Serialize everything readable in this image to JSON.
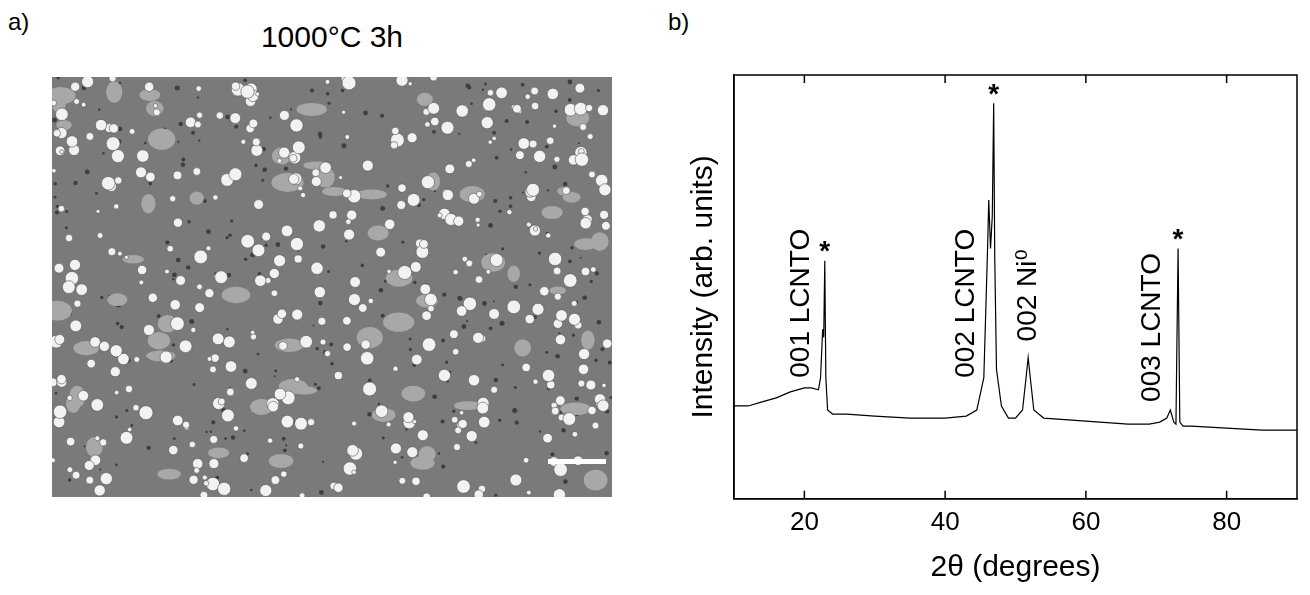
{
  "panel_a": {
    "label": "a)",
    "title": "1000°C 3h"
  },
  "chart_data": {
    "type": "line",
    "panel_label": "b)",
    "x_label": "2θ (degrees)",
    "y_label": "Intensity (arb. units)",
    "x": [
      10,
      12,
      14,
      16,
      18,
      20,
      21,
      22,
      22.3,
      22.6,
      22.75,
      22.9,
      23.05,
      23.3,
      24,
      26,
      30,
      35,
      40,
      43,
      44.5,
      45.5,
      46.0,
      46.2,
      46.45,
      46.7,
      46.9,
      47.05,
      47.3,
      48,
      49,
      50,
      51,
      51.5,
      51.8,
      52.1,
      52.6,
      54,
      58,
      62,
      66,
      69,
      70.5,
      71.5,
      72.0,
      72.5,
      72.8,
      73.1,
      73.35,
      73.8,
      75,
      80,
      85,
      90
    ],
    "values": [
      23,
      23,
      24,
      25,
      26.5,
      27.5,
      27.5,
      27,
      30,
      42,
      40,
      59,
      30,
      22,
      21,
      21,
      20.5,
      20,
      20,
      20.5,
      22,
      30,
      60,
      74,
      62,
      70,
      98,
      60,
      32,
      23,
      20,
      20,
      22,
      30,
      35,
      30,
      22,
      20,
      19.5,
      19,
      18.5,
      18.5,
      19,
      20,
      22,
      19,
      18.5,
      62,
      19,
      18,
      18,
      17.5,
      17,
      17
    ],
    "color": "#000000",
    "xlim": [
      10,
      90
    ],
    "xticks": [
      20,
      40,
      60,
      80
    ],
    "ylim": [
      0,
      105
    ],
    "tick_labels": "x",
    "grid": false,
    "annotations": [
      {
        "text": "001 LCNTO",
        "x": 19.5,
        "y": 30
      },
      {
        "text": "*",
        "x": 22.9,
        "y": 60.5
      },
      {
        "text": "002 LCNTO",
        "x": 43,
        "y": 30
      },
      {
        "text": "*",
        "x": 46.9,
        "y": 99.5
      },
      {
        "text": "002 Ni⁰",
        "x": 51.8,
        "y": 39
      },
      {
        "text": "003 LCNTO",
        "x": 69.5,
        "y": 24
      },
      {
        "text": "*",
        "x": 73.1,
        "y": 63.5
      }
    ]
  }
}
